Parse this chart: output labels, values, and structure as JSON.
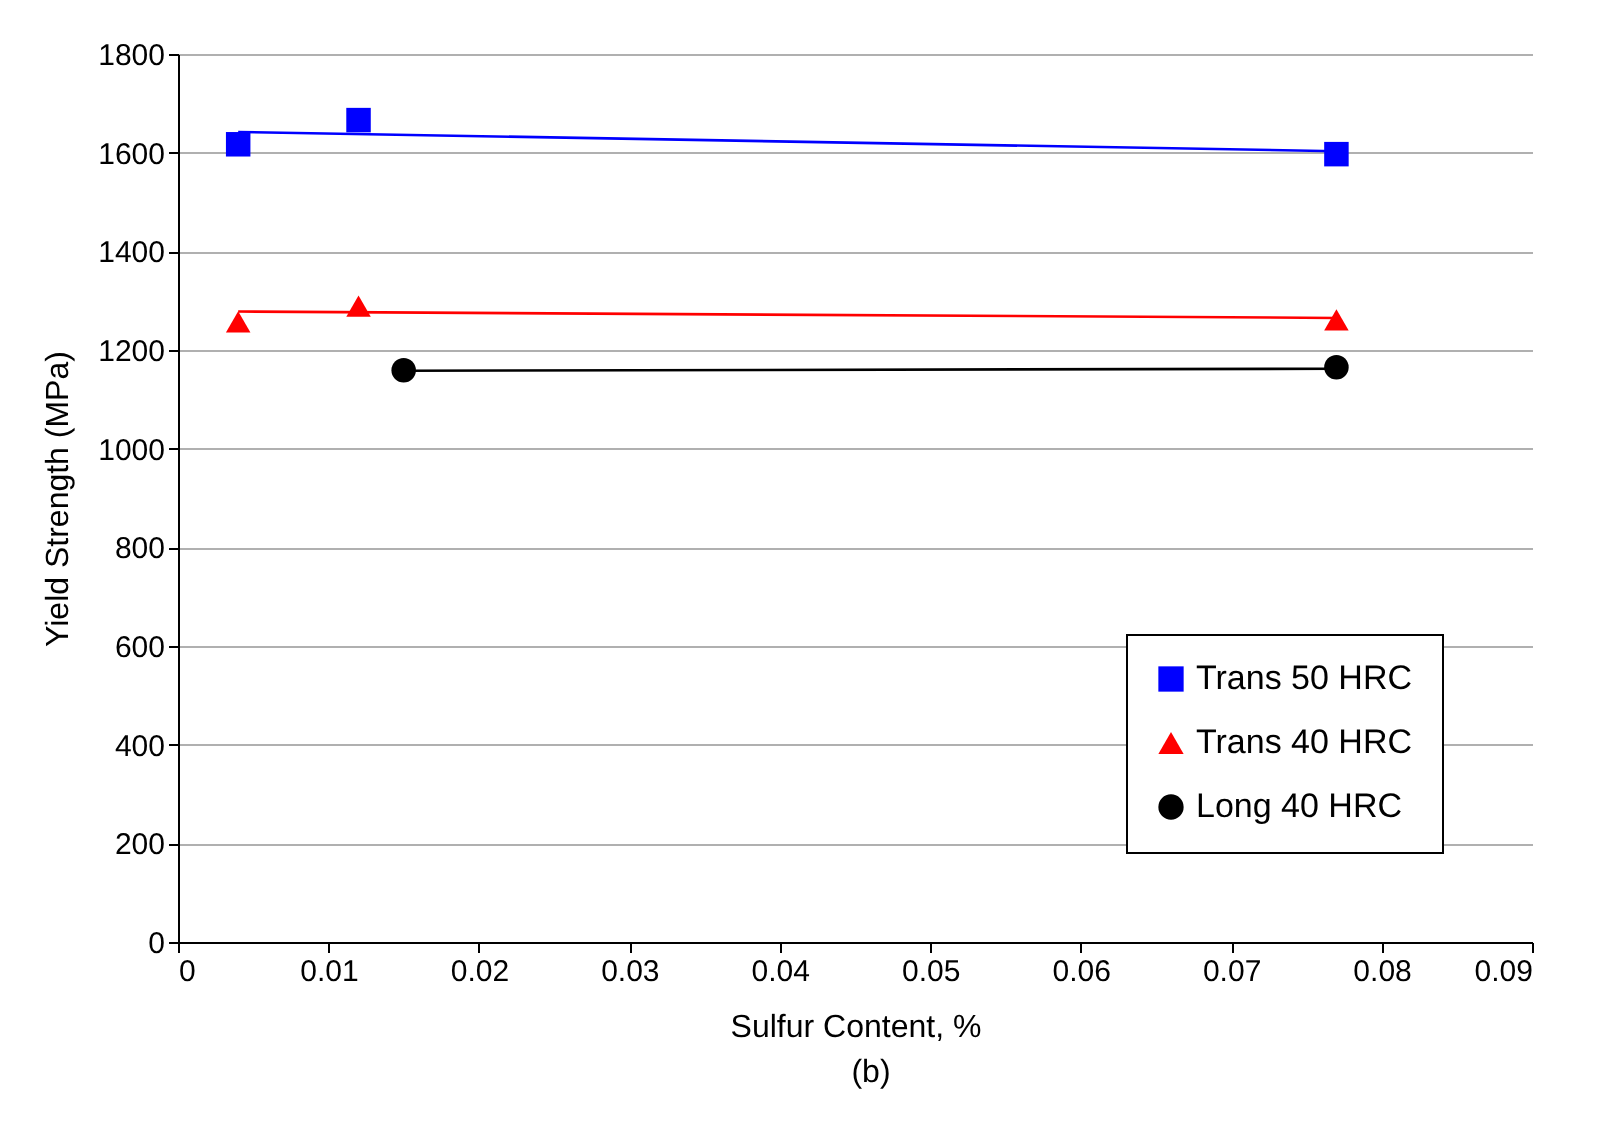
{
  "chart_data": {
    "type": "scatter",
    "xlabel": "Sulfur Content, %",
    "ylabel": "Yield Strength (MPa)",
    "xlim": [
      0,
      0.09
    ],
    "xticks": [
      0,
      0.01,
      0.02,
      0.03,
      0.04,
      0.05,
      0.06,
      0.07,
      0.08,
      0.09
    ],
    "ylim": [
      0,
      1800
    ],
    "yticks": [
      0,
      200,
      400,
      600,
      800,
      1000,
      1200,
      1400,
      1600,
      1800
    ],
    "grid": "y",
    "legend": "bottom right",
    "annotations": [
      "(b)"
    ],
    "series": [
      {
        "name": "Trans 50 HRC",
        "color": "#0000ff",
        "marker": "square",
        "x": [
          0.004,
          0.012,
          0.077
        ],
        "values": [
          1617,
          1666,
          1597
        ]
      },
      {
        "name": "Trans 40 HRC",
        "color": "#ff0000",
        "marker": "triangle",
        "x": [
          0.004,
          0.012,
          0.077
        ],
        "values": [
          1257,
          1289,
          1261
        ]
      },
      {
        "name": "Long 40 HRC",
        "color": "#000000",
        "marker": "circle",
        "x": [
          0.015,
          0.077
        ],
        "values": [
          1159,
          1165
        ]
      },
      {
        "type": "line",
        "color": "#0000ff",
        "x": [
          0.004,
          0.077
        ],
        "values": [
          1642,
          1603
        ]
      },
      {
        "type": "line",
        "color": "#ff0000",
        "x": [
          0.004,
          0.077
        ],
        "values": [
          1278,
          1265
        ]
      },
      {
        "type": "line",
        "color": "#000000",
        "x": [
          0.015,
          0.077
        ],
        "values": [
          1158,
          1162
        ]
      }
    ]
  }
}
